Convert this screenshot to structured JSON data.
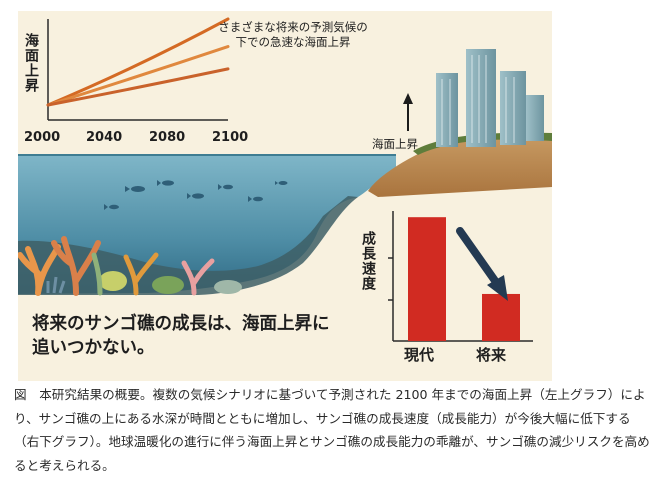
{
  "headline": "将来のサンゴ礁の成長は、海面上昇に追いつかない。",
  "annotation": "さまざまな将来の予測気候の下での急速な海面上昇",
  "rise_label": "海面上昇",
  "caption": "図　本研究結果の概要。複数の気候シナリオに基づいて予測された 2100 年までの海面上昇（左上グラフ）により、サンゴ礁の上にある水深が時間とともに増加し、サンゴ礁の成長速度（成長能力）が今後大幅に低下する（右下グラフ）。地球温暖化の進行に伴う海面上昇とサンゴ礁の成長能力の乖離が、サンゴ礁の減少リスクを高めると考えられる。",
  "colors": {
    "background": "#f8f1df",
    "sea_line": "#d46a24",
    "bar": "#d12b22",
    "arrow": "#243a52",
    "water": "#5a97ad"
  },
  "chart_data": [
    {
      "type": "line",
      "ylabel": "海面上昇",
      "xticks": [
        "2000",
        "2040",
        "2080",
        "2100"
      ],
      "xlim": [
        2000,
        2100
      ],
      "ylim": [
        0,
        1
      ],
      "series": [
        {
          "x": [
            2000,
            2050,
            2100
          ],
          "y": [
            0.0,
            0.44,
            1.0
          ]
        },
        {
          "x": [
            2000,
            2050,
            2100
          ],
          "y": [
            0.0,
            0.33,
            0.68
          ]
        },
        {
          "x": [
            2000,
            2050,
            2100
          ],
          "y": [
            0.0,
            0.2,
            0.42
          ]
        }
      ]
    },
    {
      "type": "bar",
      "ylabel": "成長速度",
      "categories": [
        "現代",
        "将来"
      ],
      "values": [
        1.0,
        0.38
      ],
      "ylim": [
        0,
        1.05
      ]
    }
  ]
}
